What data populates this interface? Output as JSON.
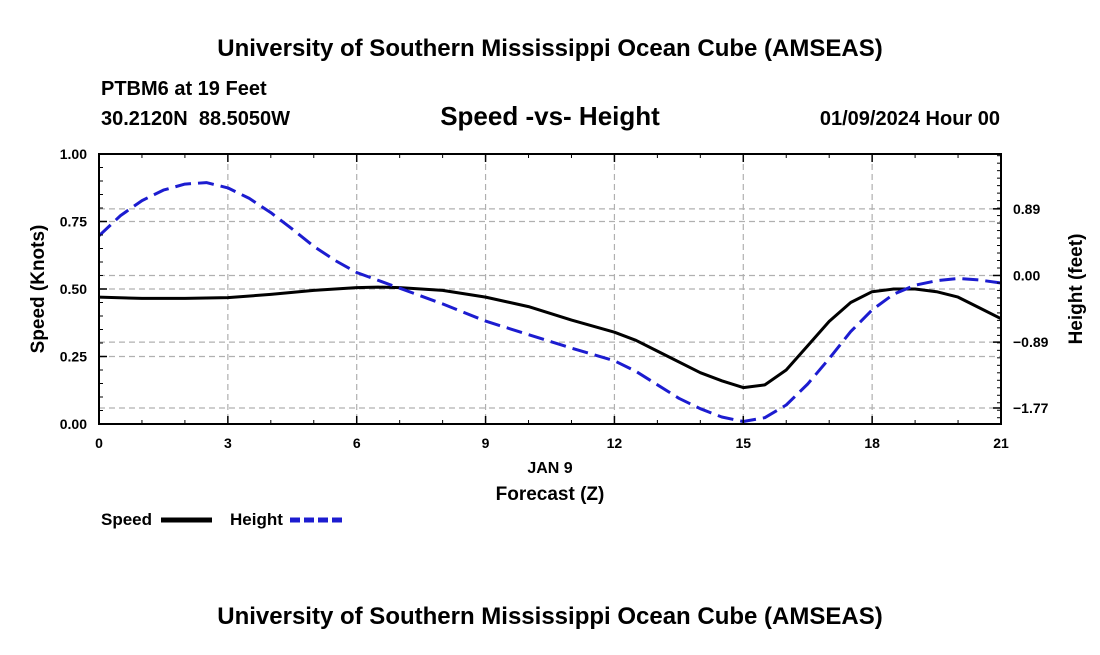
{
  "chart_data": {
    "type": "line",
    "title": "University of Southern Mississippi Ocean Cube (AMSEAS)",
    "footer_title": "University of Southern Mississippi Ocean Cube (AMSEAS)",
    "station_line": "PTBM6 at 19 Feet",
    "coords_line": "30.2120N  88.5050W",
    "subtitle": "Speed -vs- Height",
    "datetime": "01/09/2024 Hour 00",
    "xlabel_date": "JAN 9",
    "xlabel": "Forecast (Z)",
    "ylabel_left": "Speed (Knots)",
    "ylabel_right": "Height (feet)",
    "xlim": [
      0,
      21
    ],
    "ylim_left": [
      0,
      1
    ],
    "ylim_right": [
      -1.9838,
      1.6226
    ],
    "x_ticks": [
      0,
      3,
      6,
      9,
      12,
      15,
      18,
      21
    ],
    "x_tick_labels": [
      "0",
      "3",
      "6",
      "9",
      "12",
      "15",
      "18",
      "21"
    ],
    "y_left_ticks": [
      0,
      0.25,
      0.5,
      0.75,
      1.0
    ],
    "y_left_tick_labels": [
      "0.00",
      "0.25",
      "0.50",
      "0.75",
      "1.00"
    ],
    "y_right_ticks": [
      0.89,
      0.0,
      -0.89,
      -1.77
    ],
    "y_right_tick_labels": [
      "0.89",
      "0.00",
      "−0.89",
      "−1.77"
    ],
    "grid": true,
    "legend_position": "bottom-left",
    "series": [
      {
        "name": "Speed",
        "axis": "left",
        "color": "#000000",
        "style": "solid",
        "x": [
          0,
          1,
          2,
          3,
          4,
          5,
          6,
          6.5,
          7,
          8,
          9,
          10,
          11,
          12,
          12.5,
          13,
          14,
          14.5,
          15,
          15.5,
          16,
          16.5,
          17,
          17.5,
          18,
          18.5,
          19,
          19.5,
          20,
          20.5,
          21
        ],
        "values": [
          0.47,
          0.465,
          0.465,
          0.468,
          0.48,
          0.495,
          0.505,
          0.507,
          0.505,
          0.495,
          0.47,
          0.435,
          0.385,
          0.34,
          0.31,
          0.27,
          0.19,
          0.16,
          0.135,
          0.145,
          0.2,
          0.29,
          0.38,
          0.45,
          0.49,
          0.5,
          0.5,
          0.49,
          0.47,
          0.43,
          0.39
        ]
      },
      {
        "name": "Height",
        "axis": "right",
        "color": "#1c1cd0",
        "style": "dashed",
        "x": [
          0,
          0.5,
          1,
          1.5,
          2,
          2.5,
          3,
          3.5,
          4,
          4.5,
          5,
          5.5,
          6,
          7,
          8,
          9,
          10,
          11,
          12,
          12.5,
          13,
          13.5,
          14,
          14.5,
          15,
          15.5,
          16,
          16.5,
          17,
          17.5,
          18,
          18.5,
          19,
          19.5,
          20,
          20.5,
          21
        ],
        "values": [
          0.53,
          0.8,
          1.0,
          1.14,
          1.22,
          1.24,
          1.17,
          1.03,
          0.84,
          0.62,
          0.39,
          0.2,
          0.04,
          -0.17,
          -0.38,
          -0.61,
          -0.79,
          -0.97,
          -1.14,
          -1.28,
          -1.46,
          -1.64,
          -1.78,
          -1.89,
          -1.95,
          -1.9,
          -1.73,
          -1.45,
          -1.11,
          -0.75,
          -0.46,
          -0.25,
          -0.13,
          -0.07,
          -0.04,
          -0.06,
          -0.1
        ]
      }
    ]
  }
}
